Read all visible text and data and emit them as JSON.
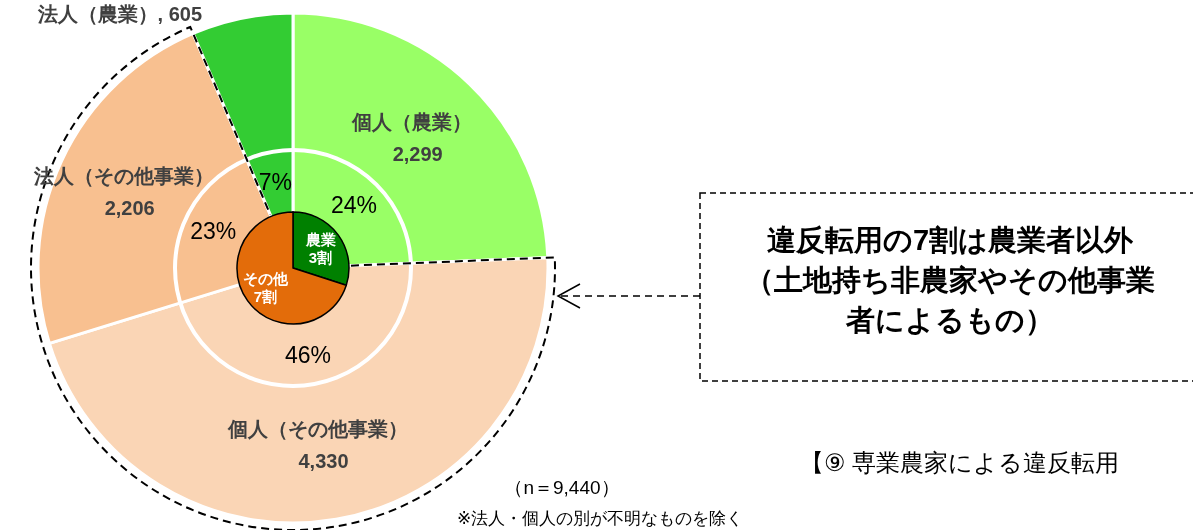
{
  "chart_data": [
    {
      "type": "pie",
      "categories": [
        "個人（農業）",
        "個人（その他事業）",
        "法人（その他事業）",
        "法人（農業）"
      ],
      "values": [
        2299,
        4330,
        2206,
        605
      ],
      "colors": [
        "#99ff66",
        "#fad5b5",
        "#f8c090",
        "#33cc33"
      ],
      "value_labels": [
        "2,299",
        "4,330",
        "2,206",
        "605"
      ],
      "annotations": [
        {
          "text": "24%",
          "x": "個人（農業）"
        },
        {
          "text": "46%",
          "x": "個人（その他事業）"
        },
        {
          "text": "23%",
          "x": "法人（その他事業）"
        },
        {
          "text": "7%",
          "x": "法人（農業）"
        },
        "違反転用の7割は農業者以外（土地持ち非農家やその他事業者によるもの）",
        "（n＝9,440）",
        "※法人・個人の別が不明なものを除く"
      ]
    },
    {
      "type": "pie",
      "categories": [
        "農業",
        "その他"
      ],
      "values": [
        3,
        7
      ],
      "colors": [
        "#008000",
        "#e36c0a"
      ],
      "value_labels": [
        "3割",
        "7割"
      ]
    },
    {
      "type": "other",
      "title": "【⑨ 専業農家による違反転用"
    }
  ]
}
